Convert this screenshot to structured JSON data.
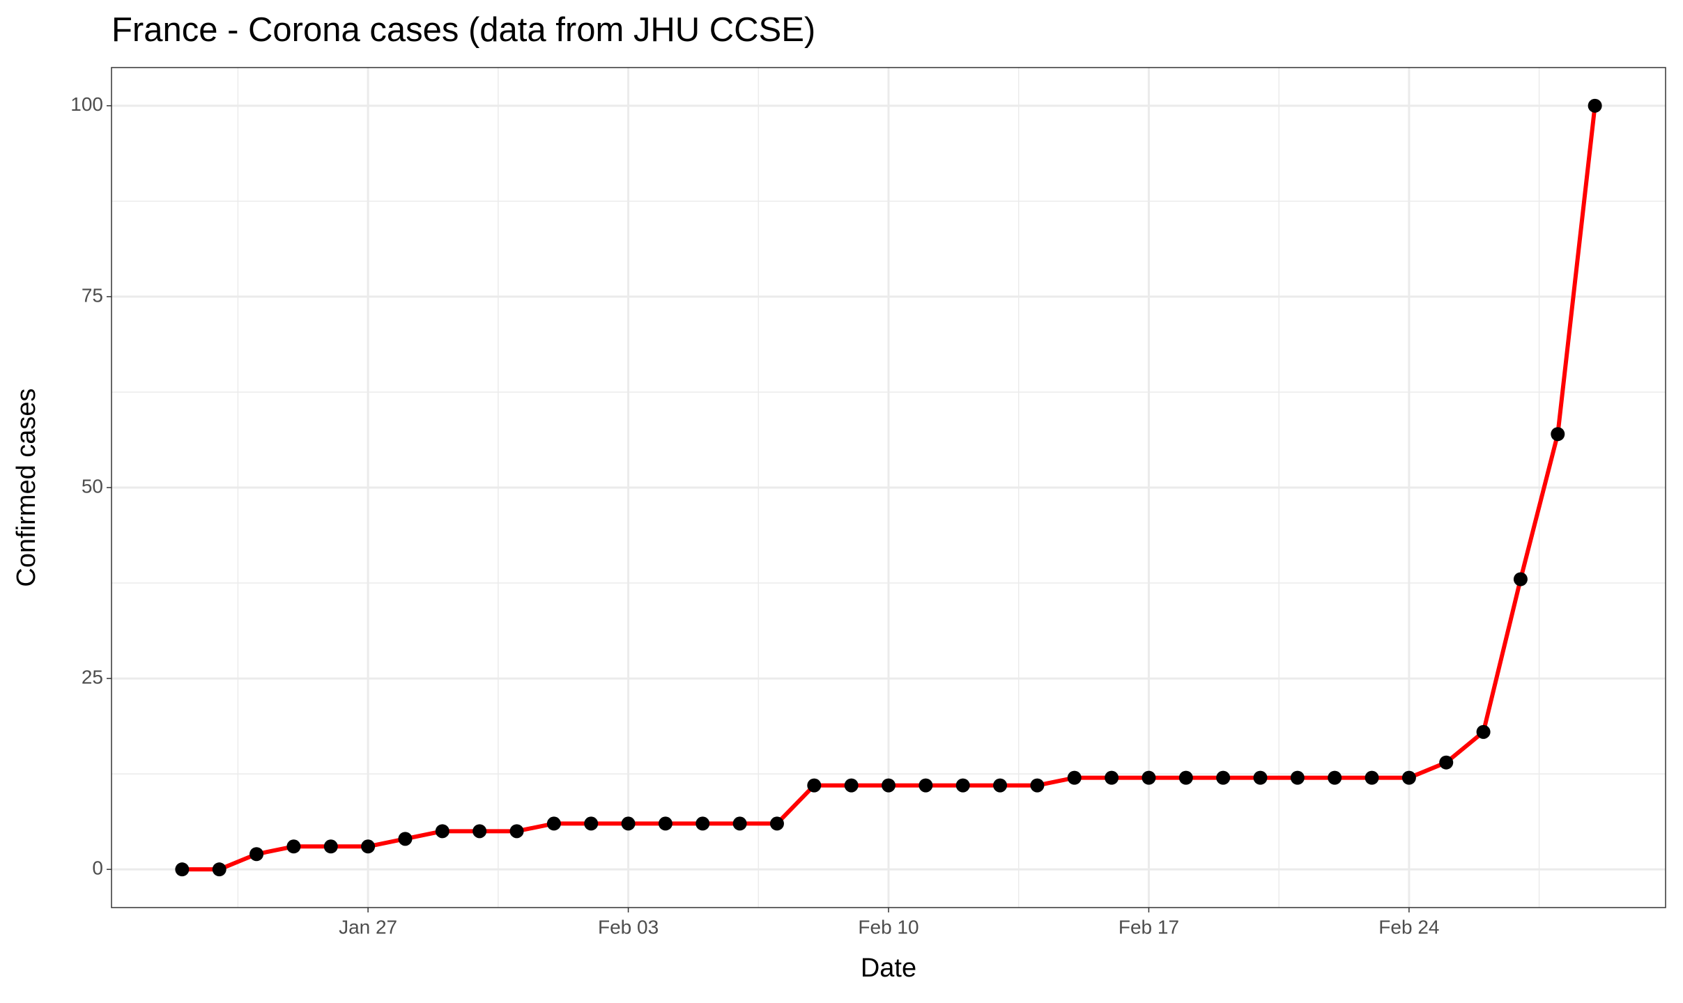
{
  "chart_data": {
    "type": "line",
    "title": "France - Corona cases (data from JHU CCSE)",
    "x_label": "Date",
    "y_label": "Confirmed cases",
    "x": [
      "Jan 22",
      "Jan 23",
      "Jan 24",
      "Jan 25",
      "Jan 26",
      "Jan 27",
      "Jan 28",
      "Jan 29",
      "Jan 30",
      "Jan 31",
      "Feb 01",
      "Feb 02",
      "Feb 03",
      "Feb 04",
      "Feb 05",
      "Feb 06",
      "Feb 07",
      "Feb 08",
      "Feb 09",
      "Feb 10",
      "Feb 11",
      "Feb 12",
      "Feb 13",
      "Feb 14",
      "Feb 15",
      "Feb 16",
      "Feb 17",
      "Feb 18",
      "Feb 19",
      "Feb 20",
      "Feb 21",
      "Feb 22",
      "Feb 23",
      "Feb 24",
      "Feb 25",
      "Feb 26",
      "Feb 27",
      "Feb 28",
      "Feb 29"
    ],
    "series": [
      {
        "name": "France",
        "color": "#ff0000",
        "marker_color": "#000000",
        "values": [
          0,
          0,
          2,
          3,
          3,
          3,
          4,
          5,
          5,
          5,
          6,
          6,
          6,
          6,
          6,
          6,
          6,
          11,
          11,
          11,
          11,
          11,
          11,
          11,
          12,
          12,
          12,
          12,
          12,
          12,
          12,
          12,
          12,
          12,
          14,
          18,
          38,
          57,
          100
        ]
      }
    ],
    "xticks": [
      "Jan 27",
      "Feb 03",
      "Feb 10",
      "Feb 17",
      "Feb 24"
    ],
    "ylim": [
      -5,
      105
    ],
    "yticks": [
      0,
      25,
      50,
      75,
      100
    ],
    "grid": true
  }
}
